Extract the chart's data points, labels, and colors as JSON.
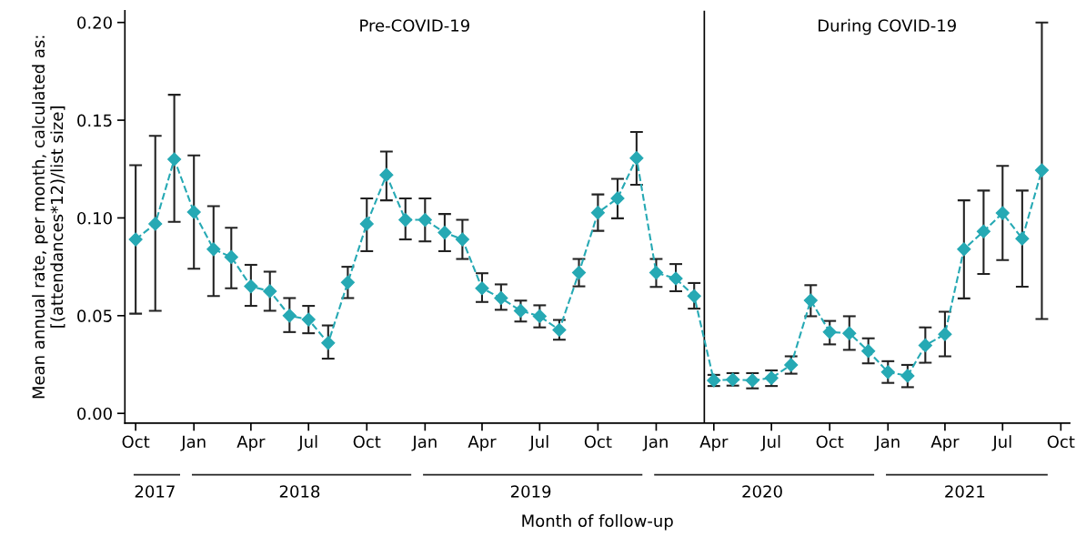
{
  "chart_data": {
    "type": "line",
    "xlabel": "Month of follow-up",
    "ylabel": "Mean annual rate, per month, calculated as:\n[(attendances*12)/list size]",
    "x": [
      "2017-10",
      "2017-11",
      "2017-12",
      "2018-01",
      "2018-02",
      "2018-03",
      "2018-04",
      "2018-05",
      "2018-06",
      "2018-07",
      "2018-08",
      "2018-09",
      "2018-10",
      "2018-11",
      "2018-12",
      "2019-01",
      "2019-02",
      "2019-03",
      "2019-04",
      "2019-05",
      "2019-06",
      "2019-07",
      "2019-08",
      "2019-09",
      "2019-10",
      "2019-11",
      "2019-12",
      "2020-01",
      "2020-02",
      "2020-03",
      "2020-04",
      "2020-05",
      "2020-06",
      "2020-07",
      "2020-08",
      "2020-09",
      "2020-10",
      "2020-11",
      "2020-12",
      "2021-01",
      "2021-02",
      "2021-03",
      "2021-04",
      "2021-05",
      "2021-06",
      "2021-07",
      "2021-08",
      "2021-09"
    ],
    "series": [
      {
        "color": "#26a9b4",
        "values": [
          0.089,
          0.097,
          0.13,
          0.103,
          0.084,
          0.08,
          0.065,
          0.0625,
          0.05,
          0.048,
          0.036,
          0.067,
          0.097,
          0.122,
          0.099,
          0.099,
          0.0925,
          0.089,
          0.064,
          0.059,
          0.0525,
          0.0497,
          0.0427,
          0.072,
          0.1027,
          0.11,
          0.1306,
          0.072,
          0.069,
          0.06,
          0.0169,
          0.0173,
          0.0169,
          0.0181,
          0.0248,
          0.0578,
          0.0416,
          0.041,
          0.0319,
          0.0211,
          0.0192,
          0.0348,
          0.0405,
          0.084,
          0.0931,
          0.1025,
          0.0894,
          0.1244
        ],
        "errors": [
          [
            0.051,
            0.127
          ],
          [
            0.0525,
            0.142
          ],
          [
            0.098,
            0.163
          ],
          [
            0.074,
            0.132
          ],
          [
            0.06,
            0.106
          ],
          [
            0.064,
            0.095
          ],
          [
            0.055,
            0.076
          ],
          [
            0.0525,
            0.0725
          ],
          [
            0.0416,
            0.059
          ],
          [
            0.041,
            0.055
          ],
          [
            0.028,
            0.045
          ],
          [
            0.059,
            0.075
          ],
          [
            0.083,
            0.11
          ],
          [
            0.109,
            0.134
          ],
          [
            0.089,
            0.11
          ],
          [
            0.088,
            0.11
          ],
          [
            0.083,
            0.102
          ],
          [
            0.079,
            0.099
          ],
          [
            0.057,
            0.0717
          ],
          [
            0.053,
            0.066
          ],
          [
            0.047,
            0.0577
          ],
          [
            0.044,
            0.0553
          ],
          [
            0.0377,
            0.0478
          ],
          [
            0.065,
            0.079
          ],
          [
            0.0934,
            0.112
          ],
          [
            0.0998,
            0.12
          ],
          [
            0.117,
            0.144
          ],
          [
            0.0647,
            0.079
          ],
          [
            0.0625,
            0.0764
          ],
          [
            0.0536,
            0.0667
          ],
          [
            0.014,
            0.0197
          ],
          [
            0.0142,
            0.0206
          ],
          [
            0.0128,
            0.0206
          ],
          [
            0.014,
            0.022
          ],
          [
            0.0203,
            0.0292
          ],
          [
            0.0497,
            0.0656
          ],
          [
            0.0353,
            0.0473
          ],
          [
            0.0325,
            0.0497
          ],
          [
            0.0256,
            0.0384
          ],
          [
            0.0156,
            0.0267
          ],
          [
            0.0134,
            0.0248
          ],
          [
            0.0259,
            0.044
          ],
          [
            0.0292,
            0.052
          ],
          [
            0.0588,
            0.109
          ],
          [
            0.0713,
            0.114
          ],
          [
            0.0784,
            0.1266
          ],
          [
            0.0648,
            0.114
          ],
          [
            0.0483,
            0.2
          ]
        ]
      }
    ],
    "marker": "diamond",
    "line_style": "dashed",
    "grid": false,
    "xlim": [
      "2017-09-14",
      "2021-10-15"
    ],
    "xticks": [
      {
        "value": "2017-10",
        "label": "Oct"
      },
      {
        "value": "2018-01",
        "label": "Jan"
      },
      {
        "value": "2018-04",
        "label": "Apr"
      },
      {
        "value": "2018-07",
        "label": "Jul"
      },
      {
        "value": "2018-10",
        "label": "Oct"
      },
      {
        "value": "2019-01",
        "label": "Jan"
      },
      {
        "value": "2019-04",
        "label": "Apr"
      },
      {
        "value": "2019-07",
        "label": "Jul"
      },
      {
        "value": "2019-10",
        "label": "Oct"
      },
      {
        "value": "2020-01",
        "label": "Jan"
      },
      {
        "value": "2020-04",
        "label": "Apr"
      },
      {
        "value": "2020-07",
        "label": "Jul"
      },
      {
        "value": "2020-10",
        "label": "Oct"
      },
      {
        "value": "2021-01",
        "label": "Jan"
      },
      {
        "value": "2021-04",
        "label": "Apr"
      },
      {
        "value": "2021-07",
        "label": "Jul"
      },
      {
        "value": "2021-10",
        "label": "Oct"
      }
    ],
    "ylim": [
      -0.005,
      0.206
    ],
    "yticks": [
      {
        "value": 0,
        "label": "0.00"
      },
      {
        "value": 0.05,
        "label": "0.05"
      },
      {
        "value": 0.1,
        "label": "0.10"
      },
      {
        "value": 0.15,
        "label": "0.15"
      },
      {
        "value": 0.2,
        "label": "0.20"
      }
    ],
    "ref_lines": [
      {
        "axis": "x",
        "value": "2020-03-17",
        "color": "#000000"
      }
    ],
    "annotations": [
      "Pre-COVID-19",
      "During COVID-19",
      "2017",
      "2018",
      "2019",
      "2020",
      "2021"
    ]
  }
}
